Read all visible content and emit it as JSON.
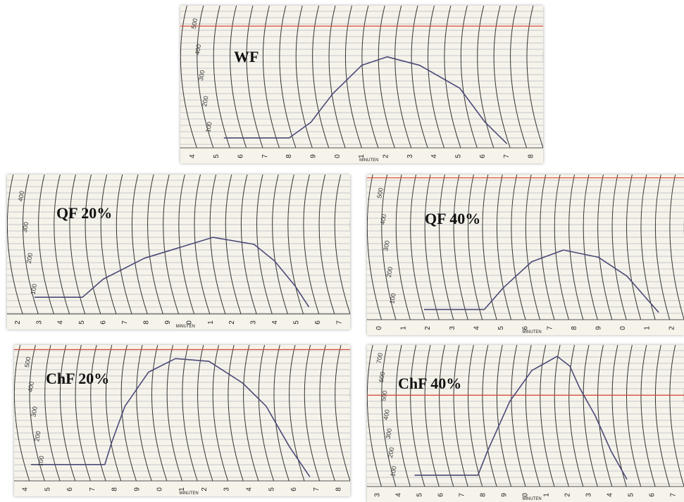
{
  "panels": [
    {
      "label": "WF",
      "axis_label": "MINUTEN",
      "x_tick_labels": [
        "4",
        "5",
        "6",
        "7",
        "8",
        "9",
        "0",
        "1",
        "2",
        "3",
        "4",
        "5",
        "6",
        "7",
        "8"
      ],
      "scale_labels": [
        "500",
        "400",
        "300",
        "200",
        "100"
      ]
    },
    {
      "label": "QF 20%",
      "axis_label": "MINUTEN",
      "x_tick_labels": [
        "2",
        "3",
        "4",
        "5",
        "6",
        "7",
        "8",
        "9",
        "0",
        "1",
        "2",
        "3",
        "4",
        "5",
        "6",
        "7"
      ],
      "scale_labels": [
        "400",
        "300",
        "200",
        "100"
      ]
    },
    {
      "label": "QF 40%",
      "axis_label": "MINUTEN",
      "x_tick_labels": [
        "0",
        "1",
        "2",
        "3",
        "4",
        "5",
        "6",
        "7",
        "8",
        "9",
        "0",
        "1",
        "2"
      ],
      "scale_labels": [
        "500",
        "400",
        "300",
        "200",
        "100"
      ]
    },
    {
      "label": "ChF 20%",
      "axis_label": "MINUTEN",
      "x_tick_labels": [
        "4",
        "5",
        "6",
        "7",
        "8",
        "9",
        "0",
        "1",
        "2",
        "3",
        "4",
        "5",
        "6",
        "7",
        "8"
      ],
      "scale_labels": [
        "500",
        "400",
        "300",
        "200",
        "100"
      ]
    },
    {
      "label": "ChF 40%",
      "axis_label": "MINUTEN",
      "x_tick_labels": [
        "3",
        "4",
        "5",
        "6",
        "7",
        "8",
        "9",
        "0",
        "1",
        "2",
        "3",
        "4",
        "5",
        "6",
        "7"
      ],
      "scale_labels": [
        "700",
        "600",
        "500",
        "400",
        "300",
        "200",
        "100"
      ]
    }
  ]
}
